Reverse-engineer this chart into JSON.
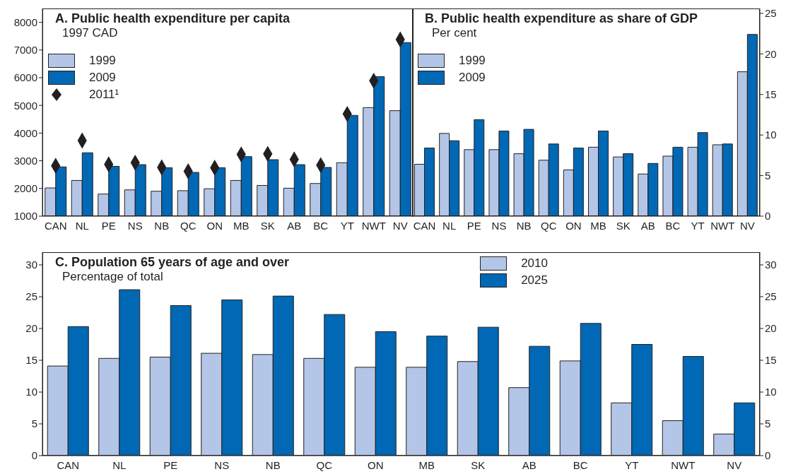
{
  "chart_data": [
    {
      "type": "bar",
      "title": "A. Public health expenditure per capita",
      "subtitle": "1997 CAD",
      "categories": [
        "CAN",
        "NL",
        "PE",
        "NS",
        "NB",
        "QC",
        "ON",
        "MB",
        "SK",
        "AB",
        "BC",
        "YT",
        "NWT",
        "NV"
      ],
      "series": [
        {
          "name": "1999",
          "color": "#b4c6e7",
          "values": [
            2020,
            2290,
            1800,
            1950,
            1900,
            1920,
            1990,
            2290,
            2110,
            2010,
            2180,
            2930,
            4920,
            4810
          ]
        },
        {
          "name": "2009",
          "color": "#0068b4",
          "values": [
            2780,
            3290,
            2800,
            2860,
            2750,
            2580,
            2750,
            3150,
            3040,
            2860,
            2760,
            4640,
            6040,
            7270
          ]
        },
        {
          "name": "2011¹",
          "type": "scatter",
          "marker": "diamond",
          "color": "#231f20",
          "values": [
            2820,
            3730,
            2870,
            2930,
            2760,
            2620,
            2750,
            3230,
            3250,
            3050,
            2840,
            4690,
            5890,
            7380
          ]
        }
      ],
      "ylim": [
        1000,
        8500
      ],
      "yticks": [
        1000,
        2000,
        3000,
        4000,
        5000,
        6000,
        7000,
        8000
      ],
      "grid": false,
      "legend": "top left"
    },
    {
      "type": "bar",
      "title": "B. Public health expenditure as share of GDP",
      "subtitle": "Per cent",
      "categories": [
        "CAN",
        "NL",
        "PE",
        "NS",
        "NB",
        "QC",
        "ON",
        "MB",
        "SK",
        "AB",
        "BC",
        "YT",
        "NWT",
        "NV"
      ],
      "series": [
        {
          "name": "1999",
          "color": "#b4c6e7",
          "axis": "y2",
          "values": [
            6.4,
            10.2,
            8.2,
            8.2,
            7.7,
            6.9,
            5.7,
            8.5,
            7.3,
            5.2,
            7.4,
            8.5,
            8.8,
            17.8
          ]
        },
        {
          "name": "2009",
          "color": "#0068b4",
          "axis": "y2",
          "values": [
            8.4,
            9.3,
            11.9,
            10.5,
            10.7,
            8.9,
            8.4,
            10.5,
            7.7,
            6.5,
            8.5,
            10.3,
            8.9,
            22.4
          ]
        }
      ],
      "y2lim": [
        0,
        25.6
      ],
      "y2ticks": [
        0,
        5,
        10,
        15,
        20,
        25
      ],
      "grid": false,
      "legend": "top left"
    },
    {
      "type": "bar",
      "title": "C. Population 65 years of age and over",
      "subtitle": "Percentage of total",
      "categories": [
        "CAN",
        "NL",
        "PE",
        "NS",
        "NB",
        "QC",
        "ON",
        "MB",
        "SK",
        "AB",
        "BC",
        "YT",
        "NWT",
        "NV"
      ],
      "series": [
        {
          "name": "2010",
          "color": "#b4c6e7",
          "values": [
            14.1,
            15.3,
            15.5,
            16.1,
            15.9,
            15.3,
            13.9,
            13.9,
            14.8,
            10.7,
            14.9,
            8.3,
            5.5,
            3.4
          ]
        },
        {
          "name": "2025",
          "color": "#0068b4",
          "values": [
            20.3,
            26.1,
            23.6,
            24.5,
            25.1,
            22.2,
            19.5,
            18.8,
            20.2,
            17.2,
            20.8,
            17.5,
            15.6,
            8.3
          ]
        }
      ],
      "ylim": [
        0,
        32
      ],
      "yticks": [
        0,
        5,
        10,
        15,
        20,
        25,
        30
      ],
      "y2lim": [
        0,
        32
      ],
      "y2ticks": [
        0,
        5,
        10,
        15,
        20,
        25,
        30
      ],
      "grid": false,
      "legend": "top"
    }
  ]
}
